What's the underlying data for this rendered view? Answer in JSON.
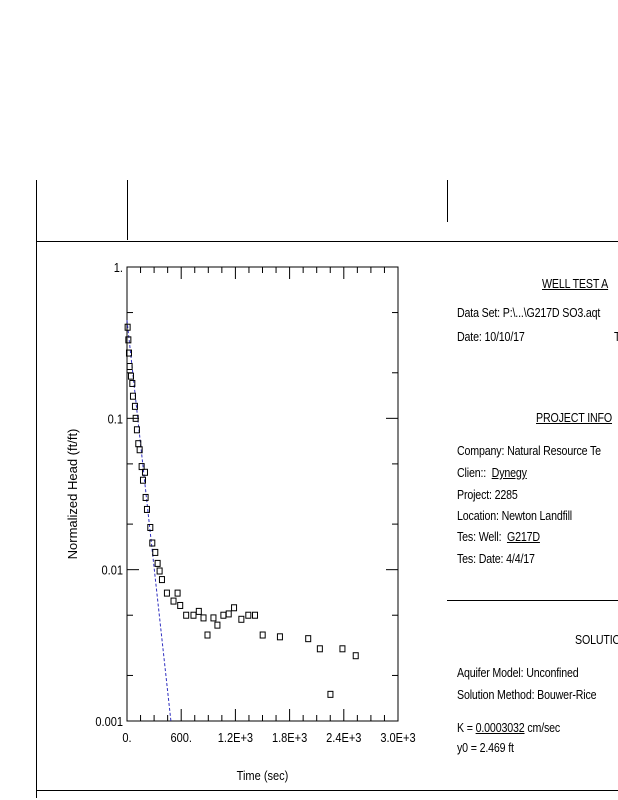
{
  "chart_data": {
    "type": "scatter",
    "xlabel": "Time (sec)",
    "ylabel": "Normalized Head (ft/ft)",
    "xlim": [
      0,
      3000
    ],
    "ylim": [
      0.001,
      1
    ],
    "yscale": "log",
    "grid": false,
    "x_tick_labels": [
      "0.",
      "600.",
      "1.2E+3",
      "1.8E+3",
      "2.4E+3",
      "3.0E+3"
    ],
    "x_ticks": [
      0,
      600,
      1200,
      1800,
      2400,
      3000
    ],
    "y_tick_labels": [
      "1.",
      "0.1",
      "0.01",
      "0.001"
    ],
    "y_ticks": [
      1,
      0.1,
      0.01,
      0.001
    ],
    "points": [
      [
        7,
        0.4
      ],
      [
        15,
        0.33
      ],
      [
        22,
        0.27
      ],
      [
        29,
        0.22
      ],
      [
        44,
        0.19
      ],
      [
        59,
        0.17
      ],
      [
        66,
        0.14
      ],
      [
        88,
        0.12
      ],
      [
        96,
        0.1
      ],
      [
        110,
        0.084
      ],
      [
        125,
        0.068
      ],
      [
        140,
        0.062
      ],
      [
        162,
        0.048
      ],
      [
        177,
        0.039
      ],
      [
        199,
        0.044
      ],
      [
        206,
        0.03
      ],
      [
        221,
        0.025
      ],
      [
        258,
        0.019
      ],
      [
        280,
        0.015
      ],
      [
        313,
        0.013
      ],
      [
        339,
        0.011
      ],
      [
        361,
        0.0098
      ],
      [
        387,
        0.0086
      ],
      [
        442,
        0.007
      ],
      [
        560,
        0.007
      ],
      [
        515,
        0.0062
      ],
      [
        589,
        0.0058
      ],
      [
        655,
        0.005
      ],
      [
        736,
        0.005
      ],
      [
        795,
        0.0053
      ],
      [
        847,
        0.0048
      ],
      [
        891,
        0.0037
      ],
      [
        957,
        0.0048
      ],
      [
        1001,
        0.0043
      ],
      [
        1067,
        0.005
      ],
      [
        1126,
        0.0051
      ],
      [
        1185,
        0.0056
      ],
      [
        1266,
        0.0047
      ],
      [
        1343,
        0.005
      ],
      [
        1417,
        0.005
      ],
      [
        1502,
        0.0037
      ],
      [
        1693,
        0.0036
      ],
      [
        2006,
        0.0035
      ],
      [
        2135,
        0.003
      ],
      [
        2252,
        0.0015
      ],
      [
        2385,
        0.003
      ],
      [
        2532,
        0.0027
      ]
    ],
    "fit_line": {
      "x": [
        0,
        486
      ],
      "y": [
        0.445,
        0.001
      ],
      "color": "#3030c0"
    }
  },
  "panel": {
    "well_test_title": "WELL TEST A",
    "data_set": "Data Set:  P:\\...\\G217D SO3.aqt",
    "date": "Date:  10/10/17",
    "date_trunc": "T",
    "project_title": "PROJECT INFO",
    "company": "Company:  Natural Resource Te",
    "client_label": "Clien::",
    "client_value": "Dynegy",
    "project": "Project:  2285",
    "location": "Location:  Newton Landfill",
    "well_label": "Tes: Well:",
    "well_value": "G217D",
    "test_date": "Tes: Date:  4/4/17",
    "solution_title": "SOLUTIO",
    "aquifer_model": "Aquifer Model:  Unconfined",
    "solution_method": "Solution Method:  Bouwer-Rice",
    "k_label": "K  = ",
    "k_value": "0.0003032",
    "k_unit": " cm/sec",
    "y0": "y0 = 2.469 ft"
  }
}
